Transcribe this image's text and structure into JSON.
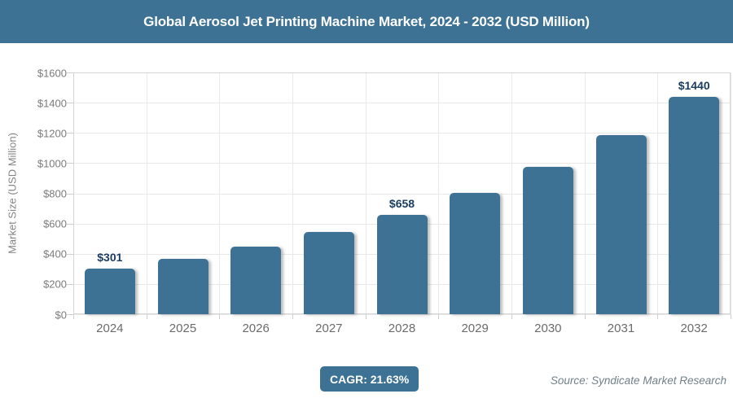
{
  "header": {
    "title": "Global Aerosol Jet Printing Machine Market, 2024 - 2032 (USD Million)"
  },
  "chart_data": {
    "type": "bar",
    "title": "Global Aerosol Jet Printing Machine Market, 2024 - 2032 (USD Million)",
    "categories": [
      "2024",
      "2025",
      "2026",
      "2027",
      "2028",
      "2029",
      "2030",
      "2031",
      "2032"
    ],
    "values": [
      301,
      366,
      445,
      542,
      658,
      801,
      975,
      1185,
      1440
    ],
    "data_labels": [
      "$301",
      null,
      null,
      null,
      "$658",
      null,
      null,
      null,
      "$1440"
    ],
    "xlabel": "",
    "ylabel": "Market Size (USD Million)",
    "ylim": [
      0,
      1600
    ],
    "ytick_step": 200,
    "ytick_prefix": "$",
    "grid": true,
    "legend": "none",
    "bar_color": "#3d7295",
    "bar_label_color": "#1c3c60"
  },
  "footer": {
    "cagr_label": "CAGR: 21.63%",
    "source": "Source: Syndicate Market Research"
  },
  "colors": {
    "accent": "#3d7295",
    "grid_line": "#e8e8e8",
    "plot_border": "#d5d5d5",
    "axis_text": "#7b7b7b",
    "title_text": "#ffffff"
  }
}
